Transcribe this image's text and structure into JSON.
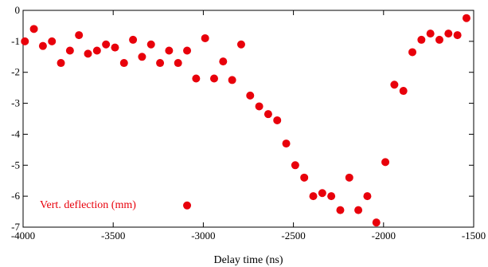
{
  "chart_data": {
    "type": "scatter",
    "title": "",
    "xlabel": "Delay time (ns)",
    "ylabel": "",
    "xlim": [
      -4000,
      -1500
    ],
    "ylim": [
      -7,
      0
    ],
    "grid": false,
    "legend_position": "bottom-left",
    "x_ticks": [
      -4000,
      -3500,
      -3000,
      -2500,
      -2000,
      -1500
    ],
    "y_ticks": [
      0,
      -1,
      -2,
      -3,
      -4,
      -5,
      -6,
      -7
    ],
    "series": [
      {
        "name": "Vert. deflection (mm)",
        "color": "#e8000b",
        "marker": "circle",
        "points": [
          [
            -3990,
            -1.0
          ],
          [
            -3940,
            -0.6
          ],
          [
            -3890,
            -1.15
          ],
          [
            -3840,
            -1.0
          ],
          [
            -3790,
            -1.7
          ],
          [
            -3740,
            -1.3
          ],
          [
            -3690,
            -0.8
          ],
          [
            -3640,
            -1.4
          ],
          [
            -3590,
            -1.3
          ],
          [
            -3540,
            -1.1
          ],
          [
            -3490,
            -1.2
          ],
          [
            -3440,
            -1.7
          ],
          [
            -3390,
            -0.95
          ],
          [
            -3340,
            -1.5
          ],
          [
            -3290,
            -1.1
          ],
          [
            -3240,
            -1.7
          ],
          [
            -3190,
            -1.3
          ],
          [
            -3140,
            -1.7
          ],
          [
            -3090,
            -1.3
          ],
          [
            -3090,
            -6.3
          ],
          [
            -3040,
            -2.2
          ],
          [
            -2990,
            -0.9
          ],
          [
            -2940,
            -2.2
          ],
          [
            -2890,
            -1.65
          ],
          [
            -2840,
            -2.25
          ],
          [
            -2790,
            -1.1
          ],
          [
            -2740,
            -2.75
          ],
          [
            -2690,
            -3.1
          ],
          [
            -2640,
            -3.35
          ],
          [
            -2590,
            -3.55
          ],
          [
            -2540,
            -4.3
          ],
          [
            -2490,
            -5.0
          ],
          [
            -2440,
            -5.4
          ],
          [
            -2390,
            -6.0
          ],
          [
            -2340,
            -5.9
          ],
          [
            -2290,
            -6.0
          ],
          [
            -2240,
            -6.45
          ],
          [
            -2190,
            -5.4
          ],
          [
            -2140,
            -6.45
          ],
          [
            -2090,
            -6.0
          ],
          [
            -2040,
            -6.85
          ],
          [
            -1990,
            -4.9
          ],
          [
            -1940,
            -2.4
          ],
          [
            -1890,
            -2.6
          ],
          [
            -1840,
            -1.35
          ],
          [
            -1790,
            -0.95
          ],
          [
            -1740,
            -0.75
          ],
          [
            -1690,
            -0.95
          ],
          [
            -1640,
            -0.75
          ],
          [
            -1590,
            -0.8
          ],
          [
            -1540,
            -0.25
          ]
        ]
      }
    ]
  }
}
